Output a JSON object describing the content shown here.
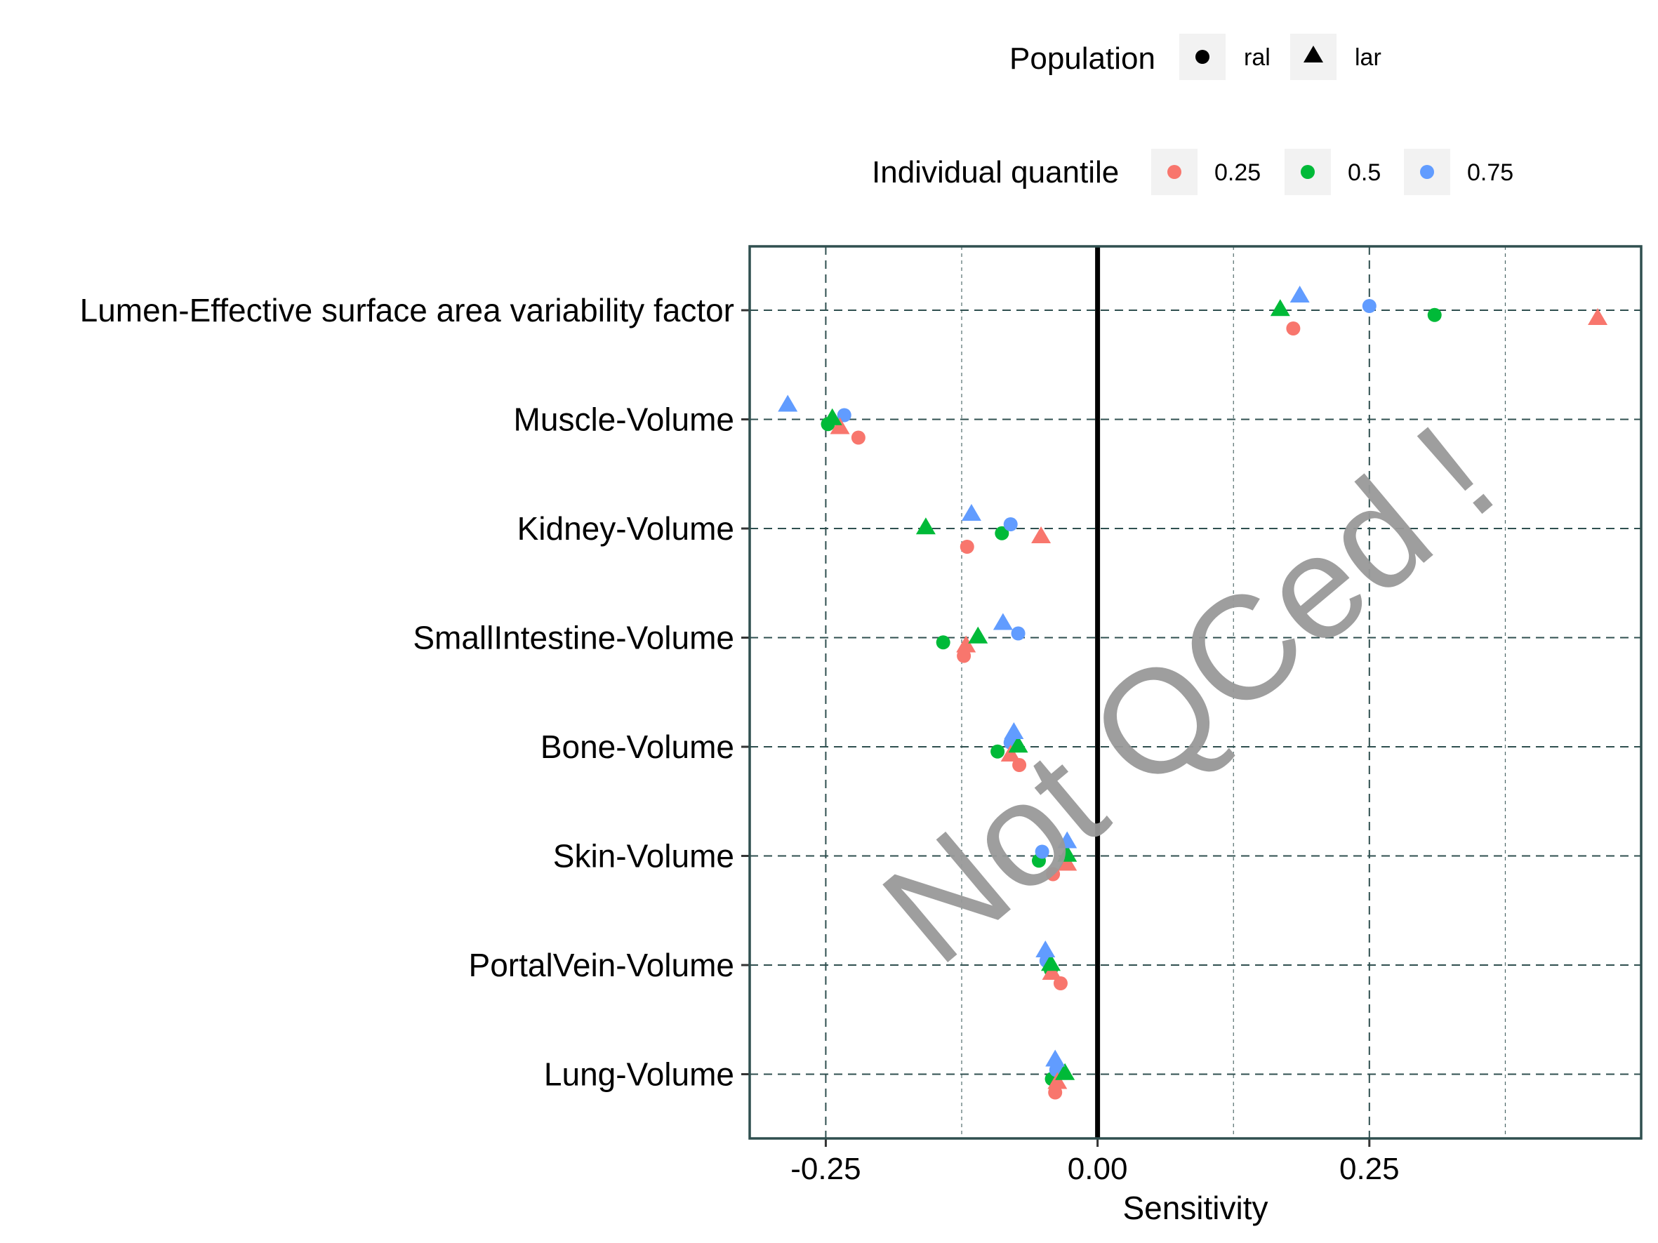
{
  "legend": {
    "population": {
      "title": "Population",
      "items": [
        {
          "label": "ral",
          "shape": "circle"
        },
        {
          "label": "lar",
          "shape": "triangle"
        }
      ]
    },
    "quantile": {
      "title": "Individual quantile",
      "items": [
        {
          "label": "0.25",
          "color": "#F8766D"
        },
        {
          "label": "0.5",
          "color": "#00BA38"
        },
        {
          "label": "0.75",
          "color": "#619CFF"
        }
      ]
    }
  },
  "watermark": "Not QCed !",
  "colors": {
    "panel_border": "#2F4F4F",
    "grid": "#2F4F4F",
    "zero_line": "#000000",
    "legend_key_bg": "#F2F2F2"
  },
  "chart_data": {
    "type": "scatter",
    "xlabel": "Sensitivity",
    "ylabel": "",
    "xlim": [
      -0.32,
      0.5
    ],
    "x_ticks": [
      -0.25,
      0.0,
      0.25
    ],
    "x_tick_labels": [
      "-0.25",
      "0.00",
      "0.25"
    ],
    "grid": true,
    "legend_position": "top",
    "categories": [
      "Lumen-Effective surface area variability factor",
      "Muscle-Volume",
      "Kidney-Volume",
      "SmallIntestine-Volume",
      "Bone-Volume",
      "Skin-Volume",
      "PortalVein-Volume",
      "Lung-Volume"
    ],
    "series": [
      {
        "population": "ral",
        "quantile": "0.25",
        "shape": "circle",
        "color": "#F8766D",
        "values": [
          0.18,
          -0.22,
          -0.12,
          -0.123,
          -0.072,
          -0.041,
          -0.034,
          -0.039
        ]
      },
      {
        "population": "ral",
        "quantile": "0.5",
        "shape": "circle",
        "color": "#00BA38",
        "values": [
          0.31,
          -0.248,
          -0.088,
          -0.142,
          -0.092,
          -0.054,
          -0.043,
          -0.042
        ]
      },
      {
        "population": "ral",
        "quantile": "0.75",
        "shape": "circle",
        "color": "#619CFF",
        "values": [
          0.25,
          -0.233,
          -0.08,
          -0.073,
          -0.08,
          -0.051,
          -0.047,
          -0.038
        ]
      },
      {
        "population": "lar",
        "quantile": "0.25",
        "shape": "triangle",
        "color": "#F8766D",
        "values": [
          0.46,
          -0.237,
          -0.052,
          -0.121,
          -0.08,
          -0.028,
          -0.042,
          -0.037
        ]
      },
      {
        "population": "lar",
        "quantile": "0.5",
        "shape": "triangle",
        "color": "#00BA38",
        "values": [
          0.168,
          -0.244,
          -0.158,
          -0.11,
          -0.073,
          -0.028,
          -0.043,
          -0.03
        ]
      },
      {
        "population": "lar",
        "quantile": "0.75",
        "shape": "triangle",
        "color": "#619CFF",
        "values": [
          0.186,
          -0.285,
          -0.116,
          -0.087,
          -0.077,
          -0.028,
          -0.048,
          -0.039
        ]
      }
    ]
  }
}
